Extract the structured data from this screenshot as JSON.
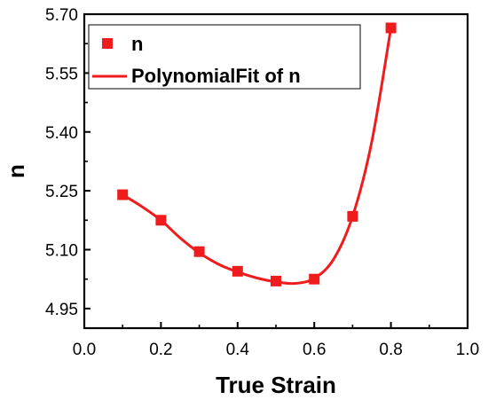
{
  "chart_data": {
    "type": "scatter",
    "xlabel": "True Strain",
    "ylabel": "n",
    "xlim": [
      0.0,
      1.0
    ],
    "ylim": [
      4.9,
      5.7
    ],
    "x_ticks": [
      "0.0",
      "0.2",
      "0.4",
      "0.6",
      "0.8",
      "1.0"
    ],
    "y_ticks": [
      "4.95",
      "5.10",
      "5.25",
      "5.40",
      "5.55",
      "5.70"
    ],
    "grid": false,
    "legend_position": "top-left",
    "series": [
      {
        "name": "n",
        "kind": "scatter",
        "marker": "square",
        "color": "#ee1c1c",
        "x": [
          0.1,
          0.2,
          0.3,
          0.4,
          0.5,
          0.6,
          0.7,
          0.8
        ],
        "y": [
          5.24,
          5.175,
          5.095,
          5.045,
          5.02,
          5.025,
          5.185,
          5.665
        ]
      },
      {
        "name": "PolynomialFit of n",
        "kind": "line",
        "color": "#ee1c1c",
        "x": [
          0.1,
          0.15,
          0.2,
          0.25,
          0.3,
          0.35,
          0.4,
          0.45,
          0.5,
          0.55,
          0.6,
          0.65,
          0.7,
          0.75,
          0.8
        ],
        "y": [
          5.24,
          5.21,
          5.175,
          5.13,
          5.092,
          5.063,
          5.043,
          5.028,
          5.018,
          5.014,
          5.027,
          5.075,
          5.185,
          5.375,
          5.665
        ]
      }
    ]
  }
}
